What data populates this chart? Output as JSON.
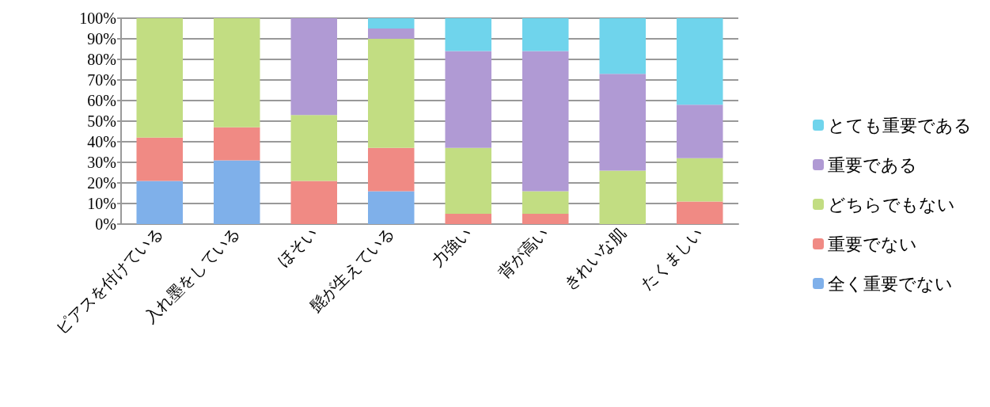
{
  "chart_data": {
    "type": "bar",
    "stacked": true,
    "categories": [
      "ピアスを付けている",
      "入れ墨をしている",
      "ほそい",
      "髭が生えている",
      "力強い",
      "背が高い",
      "きれいな肌",
      "たくましい"
    ],
    "series": [
      {
        "name": "全く重要でない",
        "color": "#7fb0ea",
        "values": [
          21,
          31,
          0,
          16,
          0,
          0,
          0,
          0
        ]
      },
      {
        "name": "重要でない",
        "color": "#f08a84",
        "values": [
          21,
          16,
          21,
          21,
          5,
          5,
          0,
          11
        ]
      },
      {
        "name": "どちらでもない",
        "color": "#c2dd82",
        "values": [
          58,
          53,
          32,
          53,
          32,
          11,
          26,
          21
        ]
      },
      {
        "name": "重要である",
        "color": "#b09ad4",
        "values": [
          0,
          0,
          47,
          5,
          47,
          68,
          47,
          26
        ]
      },
      {
        "name": "とても重要である",
        "color": "#6fd4ec",
        "values": [
          0,
          0,
          0,
          5,
          16,
          16,
          27,
          42
        ]
      }
    ],
    "ylim": [
      0,
      100
    ],
    "yticks": [
      {
        "value": 0,
        "label": "0%"
      },
      {
        "value": 10,
        "label": "10%"
      },
      {
        "value": 20,
        "label": "20%"
      },
      {
        "value": 30,
        "label": "30%"
      },
      {
        "value": 40,
        "label": "40%"
      },
      {
        "value": 50,
        "label": "50%"
      },
      {
        "value": 60,
        "label": "60%"
      },
      {
        "value": 70,
        "label": "70%"
      },
      {
        "value": 80,
        "label": "80%"
      },
      {
        "value": 90,
        "label": "90%"
      },
      {
        "value": 100,
        "label": "100%"
      }
    ],
    "grid": "y",
    "legend": "right"
  }
}
